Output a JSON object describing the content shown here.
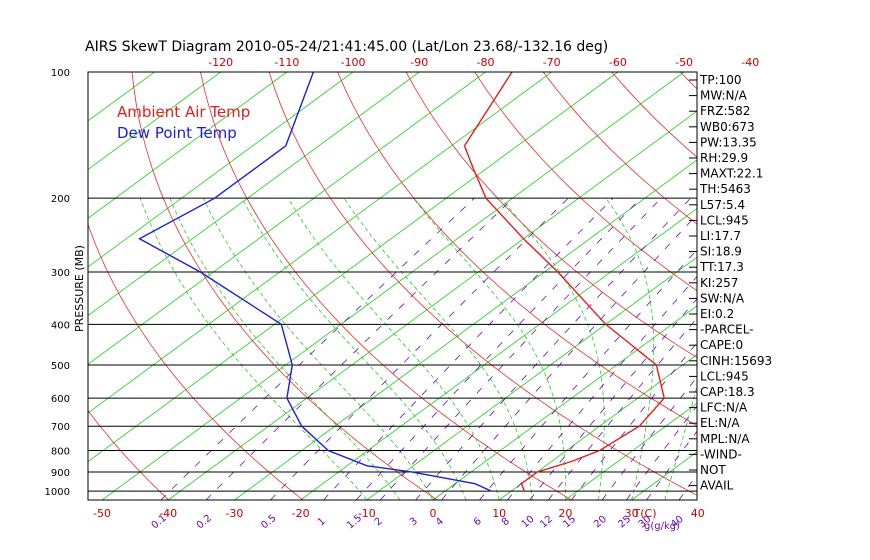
{
  "chart_data": {
    "type": "line",
    "title": "AIRS SkewT Diagram 2010-05-24/21:41:45.00 (Lat/Lon 23.68/-132.16 deg)",
    "ylabel": "PRESSURE (MB)",
    "x_unit_label": "T(C)",
    "mix_unit_label": "g(g/kg)",
    "pressure_ticks": [
      "100",
      "200",
      "300",
      "400",
      "500",
      "600",
      "700",
      "800",
      "900",
      "1000"
    ],
    "top_temp_ticks": [
      "-120",
      "-110",
      "-100",
      "-90",
      "-80",
      "-70",
      "-60",
      "-50",
      "-40"
    ],
    "bottom_temp_ticks": [
      "-50",
      "-40",
      "-30",
      "-20",
      "-10",
      "0",
      "10",
      "20",
      "30",
      "40"
    ],
    "mixing_ratio_ticks": [
      "0.1",
      "0.2",
      "0.5",
      "1",
      "1.5",
      "2",
      "3",
      "4",
      "6",
      "8",
      "10",
      "12",
      "15",
      "20",
      "25",
      "30",
      "40"
    ],
    "legend": [
      "Ambient Air Temp",
      "Dew Point Temp"
    ],
    "colors": {
      "air": "#e02020",
      "dew": "#2020d0",
      "dry_adiabat": "#e03030",
      "isotherm": "#22cc22",
      "moist_adiabat": "#22cc22",
      "mixing_ratio": "#6a0dad",
      "isobar": "#000000"
    },
    "series": [
      {
        "name": "Ambient Air Temp",
        "points": [
          [
            1000,
            12
          ],
          [
            960,
            10
          ],
          [
            900,
            10
          ],
          [
            850,
            13
          ],
          [
            800,
            15
          ],
          [
            700,
            16
          ],
          [
            600,
            14
          ],
          [
            500,
            6
          ],
          [
            400,
            -10
          ],
          [
            300,
            -28
          ],
          [
            250,
            -40
          ],
          [
            200,
            -54
          ],
          [
            170,
            -62
          ],
          [
            150,
            -68
          ],
          [
            100,
            -76
          ]
        ]
      },
      {
        "name": "Dew Point Temp",
        "points": [
          [
            1000,
            7
          ],
          [
            960,
            3
          ],
          [
            900,
            -9
          ],
          [
            870,
            -17
          ],
          [
            800,
            -26
          ],
          [
            700,
            -35
          ],
          [
            600,
            -43
          ],
          [
            500,
            -49
          ],
          [
            400,
            -59
          ],
          [
            300,
            -82
          ],
          [
            250,
            -98
          ],
          [
            200,
            -95
          ],
          [
            150,
            -95
          ],
          [
            100,
            -106
          ]
        ]
      }
    ],
    "ylim": [
      1050,
      100
    ],
    "stats": [
      "TP:100",
      "MW:N/A",
      "FRZ:582",
      "WB0:673",
      "PW:13.35",
      "RH:29.9",
      "MAXT:22.1",
      "TH:5463",
      "L57:5.4",
      "LCL:945",
      "LI:17.7",
      "SI:18.9",
      "TT:17.3",
      "KI:257",
      "SW:N/A",
      "EI:0.2",
      "-PARCEL-",
      "CAPE:0",
      "CINH:15693",
      "LCL:945",
      "CAP:18.3",
      "LFC:N/A",
      "EL:N/A",
      "MPL:N/A",
      "-WIND-",
      "NOT",
      "AVAIL"
    ]
  }
}
